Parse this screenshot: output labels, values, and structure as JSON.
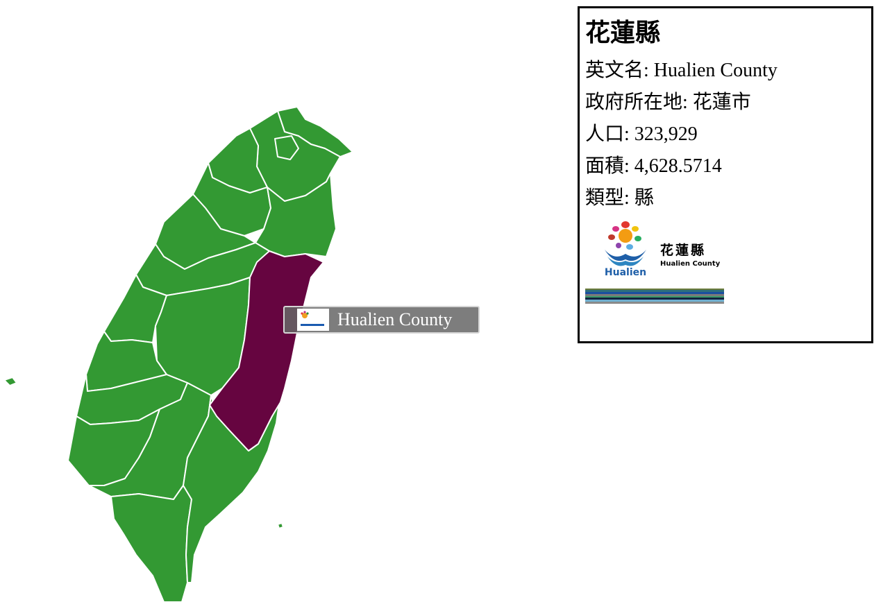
{
  "county": {
    "name_zh": "花蓮縣",
    "rows": [
      {
        "key": "英文名",
        "value": "Hualien County"
      },
      {
        "key": "政府所在地",
        "value": "花蓮市"
      },
      {
        "key": "人口",
        "value": "323,929"
      },
      {
        "key": "面積",
        "value": "4,628.5714"
      },
      {
        "key": "類型",
        "value": "縣"
      }
    ],
    "logo": {
      "zh": "花蓮縣",
      "en": "Hualien County",
      "word": "Hualien"
    }
  },
  "tooltip": {
    "label": "Hualien County"
  },
  "colors": {
    "county_fill": "#339933",
    "selected_fill": "#660540",
    "border": "#ffffff"
  },
  "stripes": [
    "#6b7a3a",
    "#2d6e7e",
    "#1a4fa0",
    "#7a7a7a",
    "#3a9a6a",
    "#12233f",
    "#6fb0d0",
    "#8a8a8a"
  ]
}
